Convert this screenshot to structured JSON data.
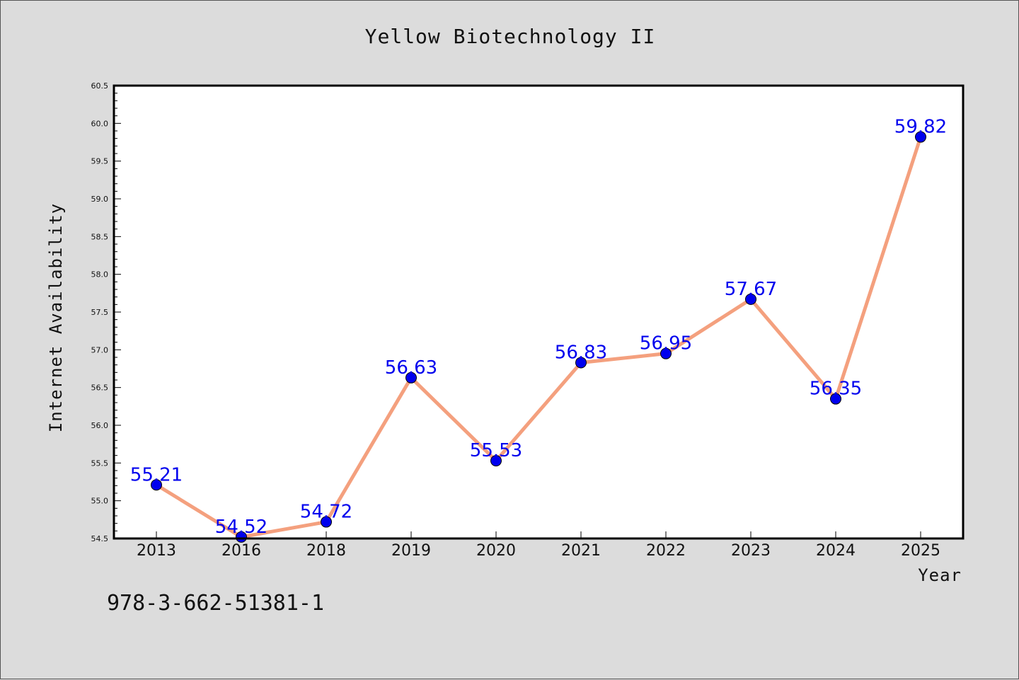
{
  "title": "Yellow Biotechnology II",
  "footnote": "978-3-662-51381-1",
  "chart_data": {
    "type": "line",
    "title": "Yellow Biotechnology II",
    "xlabel": "Year",
    "ylabel": "Internet Availability",
    "categories": [
      "2013",
      "2016",
      "2018",
      "2019",
      "2020",
      "2021",
      "2022",
      "2023",
      "2024",
      "2025"
    ],
    "series": [
      {
        "values": [
          55.21,
          54.52,
          54.72,
          56.63,
          55.53,
          56.83,
          56.95,
          57.67,
          56.35,
          59.82
        ],
        "data_labels": [
          "55.21",
          "54.52",
          "54.72",
          "56.63",
          "55.53",
          "56.83",
          "56.95",
          "57.67",
          "56.35",
          "59.82"
        ],
        "line_color": "#f4a07e",
        "marker_color": "#0000ee"
      }
    ],
    "ylim": [
      54.5,
      60.5
    ],
    "yticks": [
      "54.5",
      "55.0",
      "55.5",
      "56.0",
      "56.5",
      "57.0",
      "57.5",
      "58.0",
      "58.5",
      "59.0",
      "59.5",
      "60.0",
      "60.5"
    ],
    "grid": false,
    "legend": "none"
  }
}
